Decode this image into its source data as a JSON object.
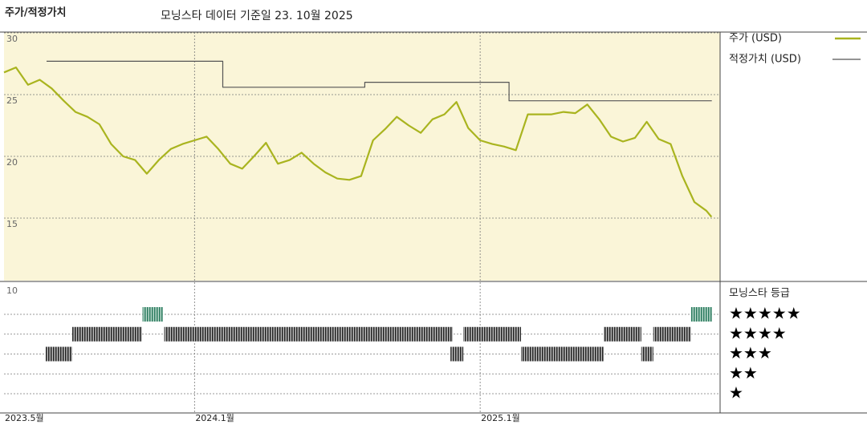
{
  "chart_data": [
    {
      "type": "line",
      "title": "주가/적정가치",
      "subtitle": "모닝스타 데이터 기준일 23. 10월 2025",
      "xlim": [
        2023.333,
        2025.84
      ],
      "ylim": [
        10,
        30
      ],
      "yticks": [
        15,
        20,
        25,
        30
      ],
      "xticks": [
        {
          "value": 2023.333,
          "label": "2023.5월"
        },
        {
          "value": 2024,
          "label": "2024.1월"
        },
        {
          "value": 2025,
          "label": "2025.1월"
        }
      ],
      "grid": true,
      "background": "#faf5d8",
      "series": [
        {
          "name": "주가 (USD)",
          "color": "#a9b41f",
          "x": [
            2023.333,
            2023.375,
            2023.417,
            2023.458,
            2023.5,
            2023.542,
            2023.583,
            2023.625,
            2023.667,
            2023.708,
            2023.75,
            2023.792,
            2023.833,
            2023.875,
            2023.917,
            2023.958,
            2024.0,
            2024.042,
            2024.083,
            2024.125,
            2024.167,
            2024.208,
            2024.25,
            2024.292,
            2024.333,
            2024.375,
            2024.417,
            2024.458,
            2024.5,
            2024.542,
            2024.583,
            2024.625,
            2024.667,
            2024.708,
            2024.75,
            2024.792,
            2024.833,
            2024.875,
            2024.917,
            2024.958,
            2025.0,
            2025.042,
            2025.083,
            2025.125,
            2025.167,
            2025.208,
            2025.25,
            2025.292,
            2025.333,
            2025.375,
            2025.417,
            2025.458,
            2025.5,
            2025.542,
            2025.583,
            2025.625,
            2025.667,
            2025.708,
            2025.75,
            2025.792,
            2025.81
          ],
          "values": [
            26.8,
            27.2,
            25.8,
            26.2,
            25.5,
            24.5,
            23.6,
            23.2,
            22.6,
            21.0,
            20.0,
            19.7,
            18.6,
            19.7,
            20.6,
            21.0,
            21.3,
            21.6,
            20.6,
            19.4,
            19.0,
            20.0,
            21.1,
            19.4,
            19.7,
            20.3,
            19.4,
            18.7,
            18.2,
            18.1,
            18.4,
            21.3,
            22.2,
            23.2,
            22.5,
            21.9,
            23.0,
            23.4,
            24.4,
            22.3,
            21.3,
            21.0,
            20.8,
            20.5,
            23.4,
            23.4,
            23.4,
            23.6,
            23.5,
            24.2,
            23.0,
            21.6,
            21.2,
            21.5,
            22.8,
            21.4,
            21.0,
            18.4,
            16.3,
            15.6,
            15.1
          ]
        },
        {
          "name": "적정가치 (USD)",
          "color": "#555555",
          "x": [
            2023.482,
            2024.099,
            2024.099,
            2024.596,
            2024.596,
            2025.101,
            2025.101,
            2025.811
          ],
          "values": [
            27.7,
            27.7,
            25.6,
            25.6,
            26.0,
            26.0,
            24.5,
            24.5
          ]
        }
      ]
    },
    {
      "type": "rating",
      "title": "모닝스타 등급",
      "corner_label": "10",
      "xlim": [
        2023.333,
        2025.84
      ],
      "levels": [
        {
          "value": 5,
          "label": "★★★★★"
        },
        {
          "value": 4,
          "label": "★★★★"
        },
        {
          "value": 3,
          "label": "★★★"
        },
        {
          "value": 2,
          "label": "★★"
        },
        {
          "value": 1,
          "label": "★"
        }
      ],
      "segments": [
        {
          "start": 2023.818,
          "end": 2023.889,
          "stars": 5
        },
        {
          "start": 2025.738,
          "end": 2025.811,
          "stars": 5
        },
        {
          "start": 2023.572,
          "end": 2023.816,
          "stars": 4
        },
        {
          "start": 2023.894,
          "end": 2024.904,
          "stars": 4
        },
        {
          "start": 2024.941,
          "end": 2025.143,
          "stars": 4
        },
        {
          "start": 2025.432,
          "end": 2025.564,
          "stars": 4
        },
        {
          "start": 2025.606,
          "end": 2025.738,
          "stars": 4
        },
        {
          "start": 2023.479,
          "end": 2023.572,
          "stars": 3
        },
        {
          "start": 2024.896,
          "end": 2024.941,
          "stars": 3
        },
        {
          "start": 2025.143,
          "end": 2025.432,
          "stars": 3
        },
        {
          "start": 2025.564,
          "end": 2025.606,
          "stars": 3
        }
      ]
    }
  ]
}
